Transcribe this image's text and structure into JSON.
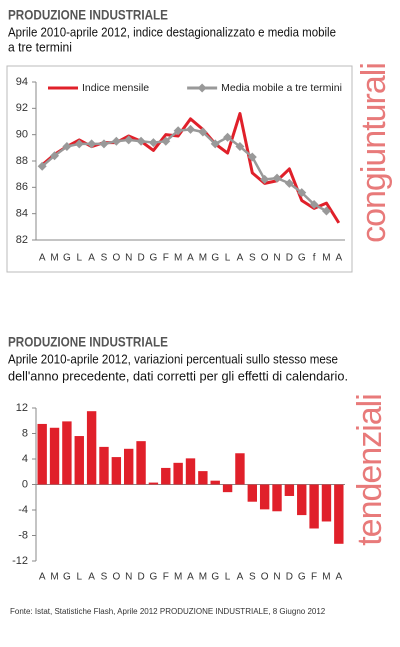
{
  "chart_data": [
    {
      "type": "line",
      "title": "PRODUZIONE INDUSTRIALE",
      "subtitle": [
        "Aprile 2010-aprile 2012, indice destagionalizzato e media mobile",
        "a tre termini"
      ],
      "side_label": "congiunturali",
      "categories": [
        "A",
        "M",
        "G",
        "L",
        "A",
        "S",
        "O",
        "N",
        "D",
        "G",
        "F",
        "M",
        "A",
        "M",
        "G",
        "L",
        "A",
        "S",
        "O",
        "N",
        "D",
        "G",
        "f",
        "M",
        "A"
      ],
      "series": [
        {
          "name": "Indice mensile",
          "color": "#e0202a",
          "marker": "none",
          "values": [
            87.7,
            88.5,
            89.1,
            89.6,
            89.1,
            89.4,
            89.4,
            89.9,
            89.5,
            88.8,
            90.0,
            89.9,
            91.2,
            90.4,
            89.3,
            88.6,
            91.6,
            87.1,
            86.3,
            86.5,
            87.4,
            85.0,
            84.4,
            84.8,
            83.3
          ]
        },
        {
          "name": "Media mobile a tre termini",
          "color": "#999999",
          "marker": "diamond",
          "values": [
            87.6,
            88.4,
            89.1,
            89.3,
            89.3,
            89.3,
            89.5,
            89.6,
            89.5,
            89.4,
            89.5,
            90.3,
            90.4,
            90.2,
            89.3,
            89.8,
            89.1,
            88.3,
            86.6,
            86.7,
            86.3,
            85.6,
            84.7,
            84.2,
            null
          ]
        }
      ],
      "ylim": [
        82,
        94
      ],
      "yticks": [
        82,
        84,
        86,
        88,
        90,
        92,
        94
      ],
      "legend": "top",
      "frame": true
    },
    {
      "type": "bar",
      "title": "PRODUZIONE INDUSTRIALE",
      "subtitle": [
        "Aprile 2010-aprile 2012, variazioni percentuali sullo stesso mese",
        "dell'anno precedente, dati corretti per gli effetti di calendario."
      ],
      "side_label": "tendenziali",
      "categories": [
        "A",
        "M",
        "G",
        "L",
        "A",
        "S",
        "O",
        "N",
        "D",
        "G",
        "F",
        "M",
        "A",
        "M",
        "G",
        "L",
        "A",
        "S",
        "O",
        "N",
        "D",
        "G",
        "F",
        "M",
        "A"
      ],
      "values": [
        9.5,
        8.9,
        9.9,
        7.6,
        11.5,
        5.9,
        4.3,
        5.6,
        6.8,
        0.3,
        2.6,
        3.4,
        4.1,
        2.1,
        0.6,
        -1.2,
        4.9,
        -2.7,
        -3.9,
        -4.2,
        -1.8,
        -4.8,
        -6.9,
        -5.8,
        -9.3
      ],
      "color": "#e0202a",
      "ylim": [
        -12,
        12
      ],
      "yticks": [
        -12,
        -8,
        -4,
        0,
        4,
        8,
        12
      ],
      "frame": false
    }
  ],
  "source": "Fonte: Istat, Statistiche Flash, Aprile 2012 PRODUZIONE INDUSTRIALE, 8 Giugno 2012"
}
